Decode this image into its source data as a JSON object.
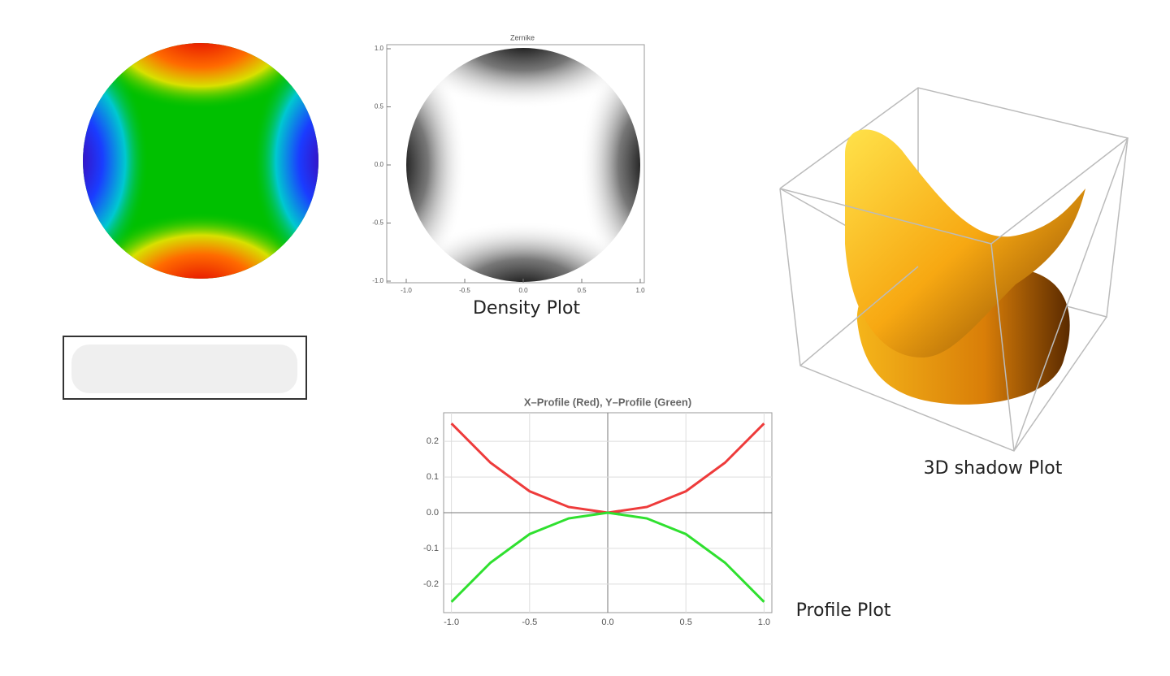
{
  "chart_data": [
    {
      "type": "density",
      "title": "Zernike",
      "caption": "Density Plot",
      "xlim": [
        -1,
        1
      ],
      "ylim": [
        -1,
        1
      ],
      "xticks": [
        {
          "value": -1,
          "label": "-1.0"
        },
        -0.5,
        {
          "value": 0,
          "label": "0.0"
        },
        0.5,
        {
          "value": 1,
          "label": "1.0"
        }
      ],
      "yticks": [
        {
          "value": -1,
          "label": "-1.0"
        },
        -0.5,
        {
          "value": 0,
          "label": "0.0"
        },
        0.5,
        {
          "value": 1,
          "label": "1.0"
        }
      ]
    },
    {
      "type": "line",
      "title": "X–Profile (Red), Y–Profile (Green)",
      "caption": "Profile Plot",
      "x": [
        -1,
        -0.75,
        -0.5,
        -0.25,
        0,
        0.25,
        0.5,
        0.75,
        1
      ],
      "series": [
        {
          "color": "#ee3b3b",
          "values": [
            0.25,
            0.14,
            0.06,
            0.016,
            0,
            0.016,
            0.06,
            0.14,
            0.25
          ]
        },
        {
          "color": "#2fe02f",
          "values": [
            -0.25,
            -0.14,
            -0.06,
            -0.016,
            0,
            -0.016,
            -0.06,
            -0.14,
            -0.25
          ]
        }
      ],
      "xlim": [
        -1.05,
        1.05
      ],
      "ylim": [
        -0.28,
        0.28
      ],
      "xticks": [
        {
          "value": -1,
          "label": "-1.0"
        },
        -0.5,
        {
          "value": 0,
          "label": "0.0"
        },
        0.5,
        {
          "value": 1,
          "label": "1.0"
        }
      ],
      "yticks": [
        -0.2,
        -0.1,
        {
          "value": 0,
          "label": "0.0"
        },
        0.1,
        0.2
      ],
      "grid": true
    },
    {
      "type": "surface3d",
      "caption": "3D shadow Plot"
    }
  ]
}
